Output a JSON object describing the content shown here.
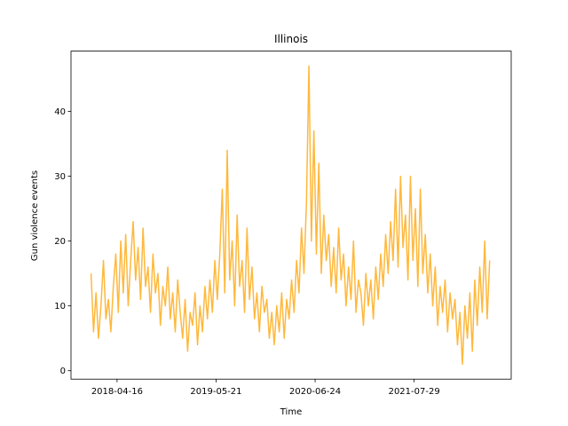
{
  "chart_data": {
    "type": "line",
    "title": "Illinois",
    "xlabel": "Time",
    "ylabel": "Gun violence events",
    "color": "#ffb83c",
    "xlim": [
      "2017-10-12",
      "2022-08-25"
    ],
    "xticks": [
      "2018-04-16",
      "2019-05-21",
      "2020-06-24",
      "2021-07-29"
    ],
    "ylim": [
      -1.3,
      49.3
    ],
    "yticks": [
      0,
      10,
      20,
      30,
      40
    ],
    "x": [
      "2018-01-01",
      "2018-01-11",
      "2018-01-21",
      "2018-01-31",
      "2018-02-10",
      "2018-02-20",
      "2018-03-02",
      "2018-03-12",
      "2018-03-22",
      "2018-04-01",
      "2018-04-11",
      "2018-04-21",
      "2018-05-01",
      "2018-05-11",
      "2018-05-21",
      "2018-05-31",
      "2018-06-10",
      "2018-06-20",
      "2018-06-30",
      "2018-07-10",
      "2018-07-20",
      "2018-07-30",
      "2018-08-09",
      "2018-08-19",
      "2018-08-29",
      "2018-09-08",
      "2018-09-18",
      "2018-09-28",
      "2018-10-08",
      "2018-10-18",
      "2018-10-28",
      "2018-11-07",
      "2018-11-17",
      "2018-11-27",
      "2018-12-07",
      "2018-12-17",
      "2018-12-27",
      "2019-01-06",
      "2019-01-16",
      "2019-01-26",
      "2019-02-05",
      "2019-02-15",
      "2019-02-25",
      "2019-03-07",
      "2019-03-17",
      "2019-03-27",
      "2019-04-06",
      "2019-04-16",
      "2019-04-26",
      "2019-05-06",
      "2019-05-16",
      "2019-05-26",
      "2019-06-05",
      "2019-06-15",
      "2019-06-25",
      "2019-07-05",
      "2019-07-15",
      "2019-07-25",
      "2019-08-04",
      "2019-08-14",
      "2019-08-24",
      "2019-09-03",
      "2019-09-13",
      "2019-09-23",
      "2019-10-03",
      "2019-10-13",
      "2019-10-23",
      "2019-11-02",
      "2019-11-12",
      "2019-11-22",
      "2019-12-02",
      "2019-12-12",
      "2019-12-22",
      "2020-01-01",
      "2020-01-11",
      "2020-01-21",
      "2020-01-31",
      "2020-02-10",
      "2020-02-20",
      "2020-03-01",
      "2020-03-11",
      "2020-03-21",
      "2020-03-31",
      "2020-04-10",
      "2020-04-20",
      "2020-04-30",
      "2020-05-10",
      "2020-05-20",
      "2020-05-30",
      "2020-06-09",
      "2020-06-19",
      "2020-06-29",
      "2020-07-09",
      "2020-07-19",
      "2020-07-29",
      "2020-08-08",
      "2020-08-18",
      "2020-08-28",
      "2020-09-07",
      "2020-09-17",
      "2020-09-27",
      "2020-10-07",
      "2020-10-17",
      "2020-10-27",
      "2020-11-06",
      "2020-11-16",
      "2020-11-26",
      "2020-12-06",
      "2020-12-16",
      "2020-12-26",
      "2021-01-05",
      "2021-01-15",
      "2021-01-25",
      "2021-02-04",
      "2021-02-14",
      "2021-02-24",
      "2021-03-06",
      "2021-03-16",
      "2021-03-26",
      "2021-04-05",
      "2021-04-15",
      "2021-04-25",
      "2021-05-05",
      "2021-05-15",
      "2021-05-25",
      "2021-06-04",
      "2021-06-14",
      "2021-06-24",
      "2021-07-04",
      "2021-07-14",
      "2021-07-24",
      "2021-08-03",
      "2021-08-13",
      "2021-08-23",
      "2021-09-02",
      "2021-09-12",
      "2021-09-22",
      "2021-10-02",
      "2021-10-12",
      "2021-10-22",
      "2021-11-01",
      "2021-11-11",
      "2021-11-21",
      "2021-12-01",
      "2021-12-11",
      "2021-12-21",
      "2021-12-31",
      "2022-01-10",
      "2022-01-20",
      "2022-01-30",
      "2022-02-09",
      "2022-02-19",
      "2022-03-01",
      "2022-03-11",
      "2022-03-21",
      "2022-03-31",
      "2022-04-10",
      "2022-04-20",
      "2022-04-30",
      "2022-05-10",
      "2022-05-20",
      "2022-05-30"
    ],
    "values": [
      15,
      6,
      12,
      5,
      10,
      17,
      8,
      11,
      6,
      13,
      18,
      9,
      20,
      12,
      21,
      10,
      17,
      23,
      14,
      19,
      11,
      22,
      13,
      16,
      9,
      18,
      12,
      15,
      7,
      13,
      10,
      16,
      8,
      12,
      6,
      14,
      9,
      5,
      11,
      3,
      9,
      7,
      12,
      4,
      10,
      6,
      13,
      8,
      14,
      9,
      17,
      11,
      18,
      28,
      12,
      34,
      14,
      20,
      10,
      24,
      13,
      17,
      9,
      22,
      11,
      16,
      8,
      12,
      6,
      13,
      9,
      11,
      5,
      9,
      4,
      10,
      6,
      12,
      5,
      11,
      8,
      14,
      9,
      17,
      12,
      22,
      15,
      26,
      47,
      20,
      37,
      18,
      32,
      15,
      24,
      17,
      21,
      13,
      19,
      12,
      22,
      14,
      18,
      10,
      16,
      11,
      20,
      9,
      14,
      12,
      7,
      15,
      10,
      14,
      8,
      16,
      11,
      18,
      13,
      21,
      15,
      23,
      17,
      28,
      16,
      30,
      19,
      24,
      14,
      30,
      17,
      25,
      13,
      28,
      15,
      21,
      12,
      18,
      10,
      16,
      7,
      13,
      9,
      14,
      6,
      12,
      8,
      11,
      4,
      9,
      1,
      10,
      5,
      12,
      3,
      14,
      7,
      16,
      9,
      20,
      8,
      17
    ]
  }
}
